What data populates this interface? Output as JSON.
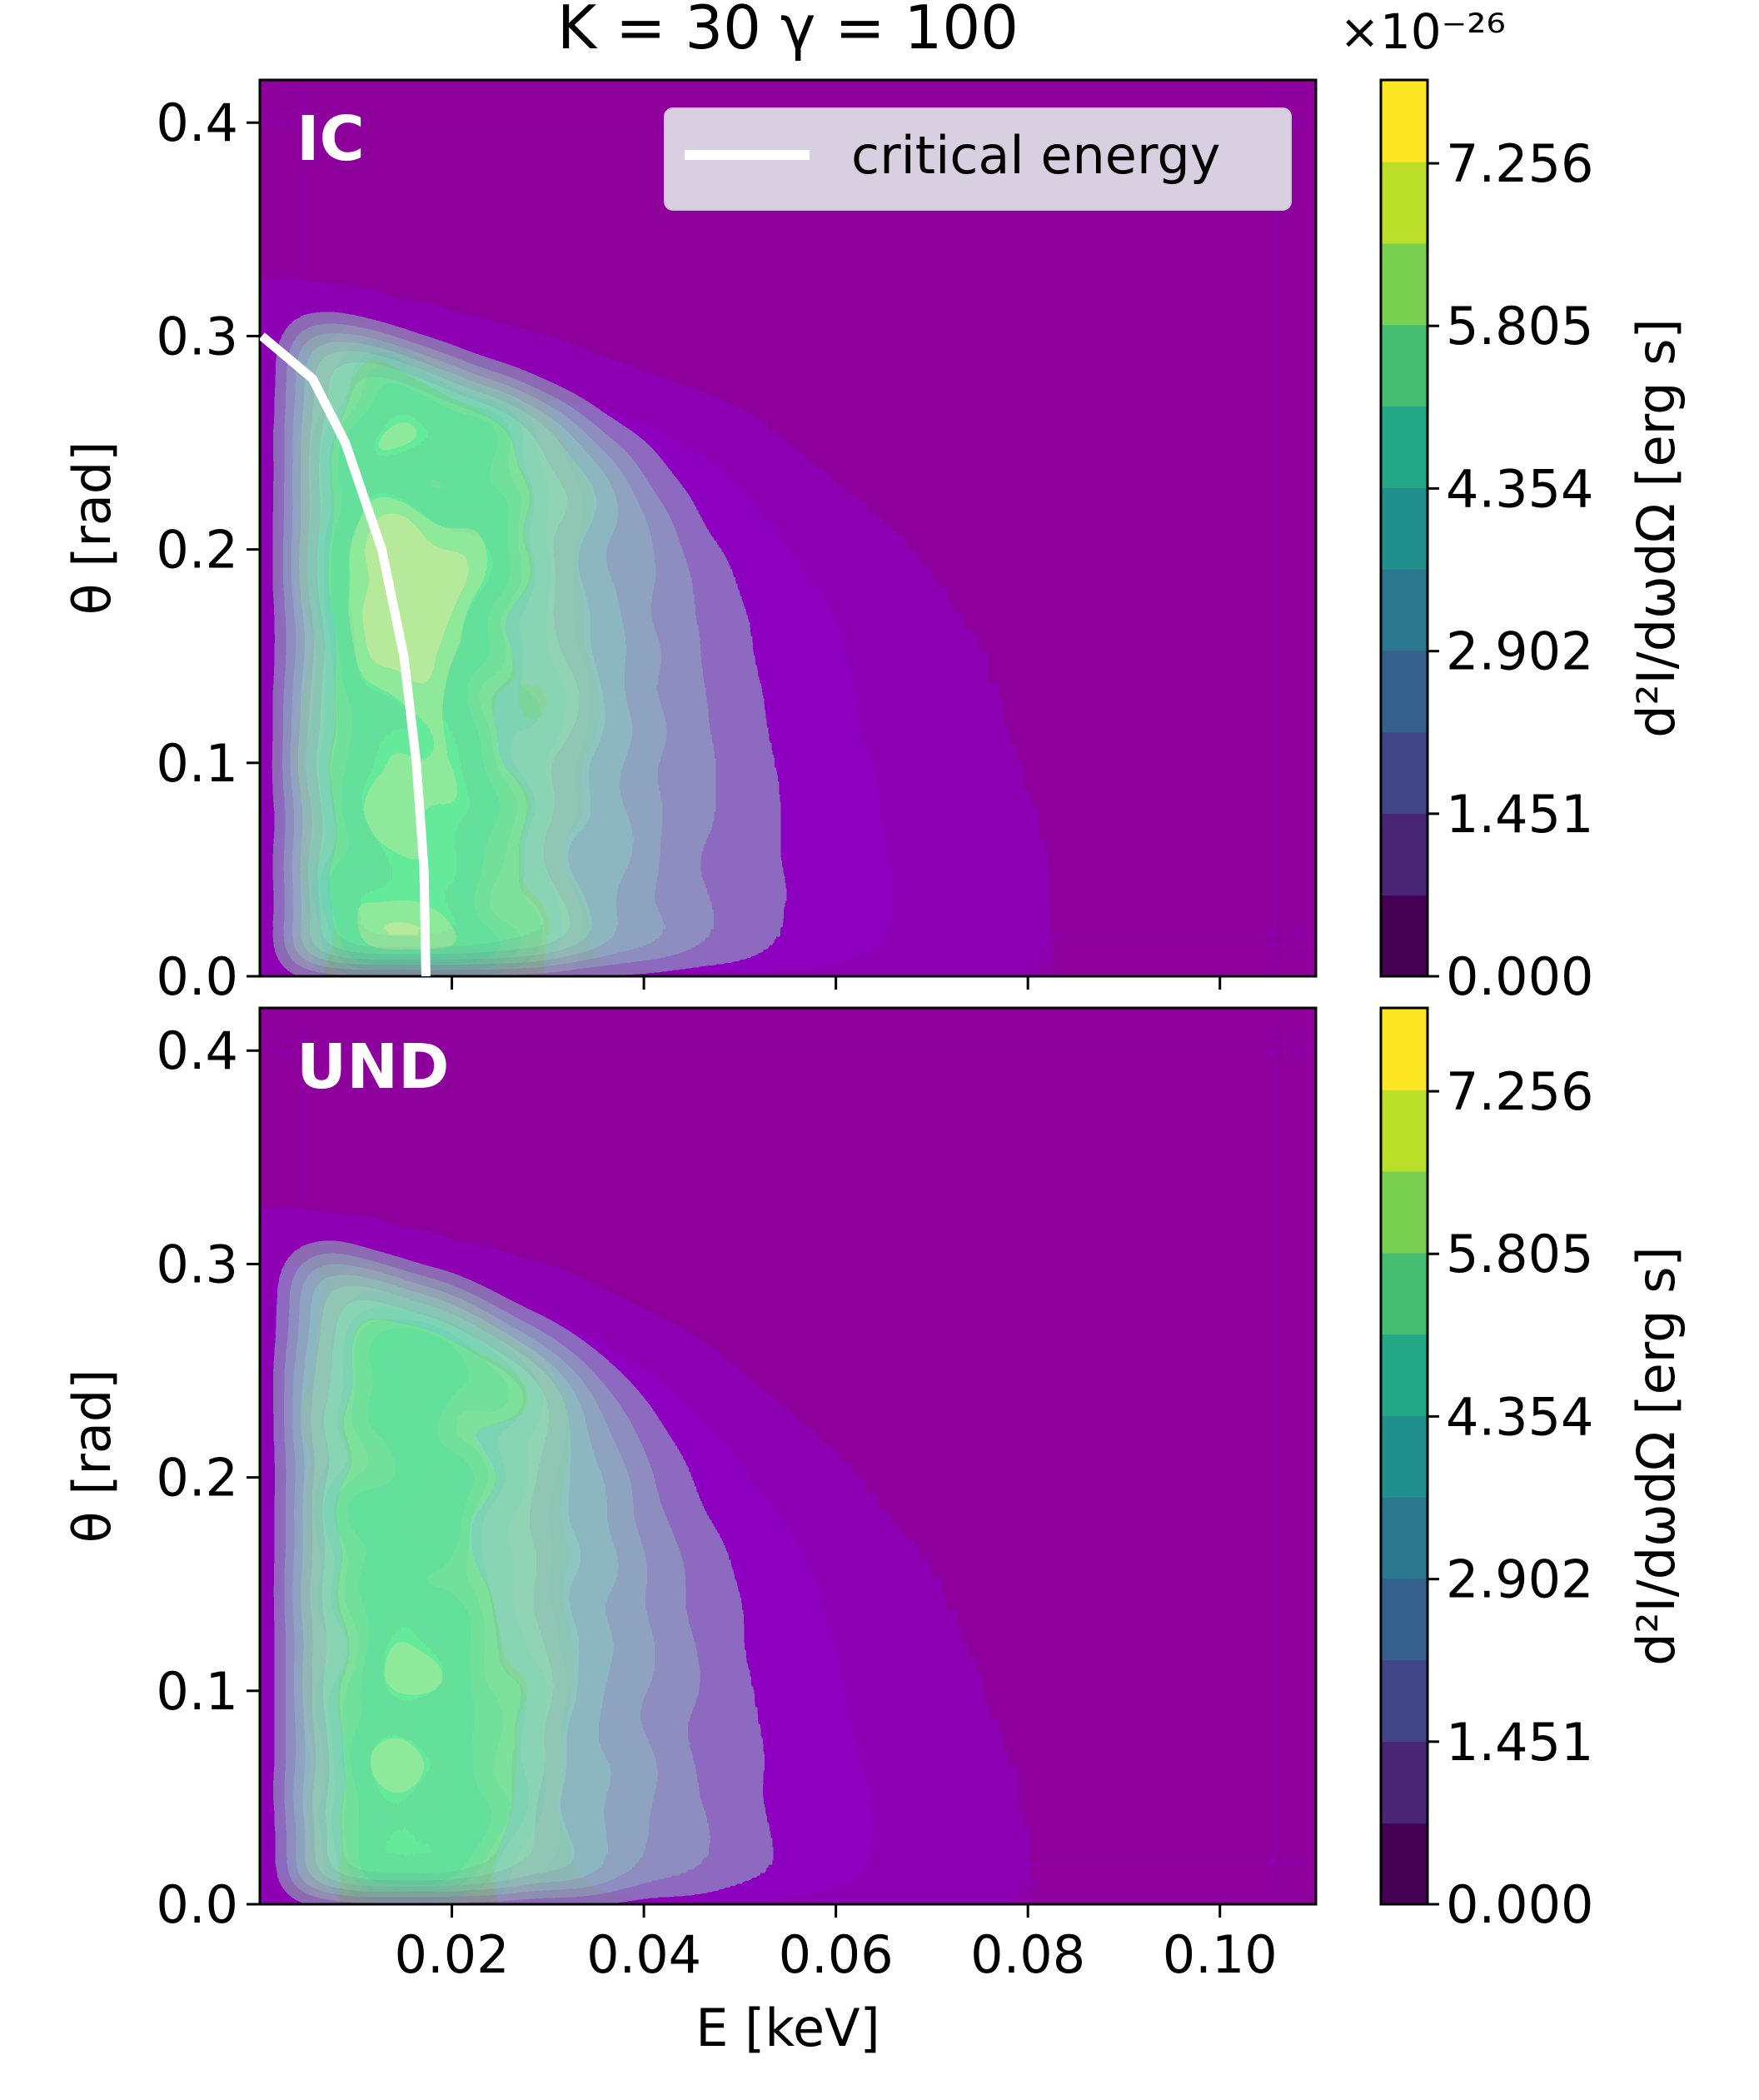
{
  "title": "K = 30  γ = 100",
  "colorbar_multiplier": "×10⁻²⁶",
  "colorbar_label": "d²I/dωdΩ [erg s]",
  "colorbar_ticks": [
    "0.000",
    "1.451",
    "2.902",
    "4.354",
    "5.805",
    "7.256"
  ],
  "colors": {
    "viridis": [
      "#440154",
      "#481a6c",
      "#472f7d",
      "#414487",
      "#39568c",
      "#31688e",
      "#2a788e",
      "#23888e",
      "#1f988b",
      "#22a884",
      "#35b779",
      "#54c568",
      "#7ad151",
      "#a5db36",
      "#d2e21b",
      "#fde725"
    ],
    "critical_line": "#ffffff"
  },
  "chart_data": [
    {
      "type": "heatmap",
      "panel_label": "IC",
      "xlabel": "E [keV]",
      "ylabel": "θ [rad]",
      "xlim": [
        0.0,
        0.11
      ],
      "ylim": [
        0.0,
        0.42
      ],
      "x_ticks": [
        "0.02",
        "0.04",
        "0.06",
        "0.08",
        "0.10"
      ],
      "y_ticks": [
        "0.0",
        "0.1",
        "0.2",
        "0.3",
        "0.4"
      ],
      "x_tick_labels_shown": false,
      "colorbar_range": [
        0.0,
        8.0
      ],
      "legend": {
        "label": "critical energy",
        "placement": "top-right"
      },
      "critical_energy_curve": {
        "theta": [
          0.0,
          0.05,
          0.1,
          0.15,
          0.2,
          0.25,
          0.28,
          0.3
        ],
        "E": [
          0.0173,
          0.0171,
          0.0163,
          0.015,
          0.0127,
          0.0089,
          0.0055,
          0.0002
        ]
      },
      "emission_edge": {
        "theta": [
          0.0,
          0.05,
          0.1,
          0.15,
          0.2,
          0.25,
          0.28,
          0.3,
          0.31
        ],
        "E_max": [
          0.0825,
          0.082,
          0.0785,
          0.075,
          0.066,
          0.05,
          0.03,
          0.012,
          0.0
        ]
      },
      "peak_value": 8.0
    },
    {
      "type": "heatmap",
      "panel_label": "UND",
      "xlabel": "E [keV]",
      "ylabel": "θ [rad]",
      "xlim": [
        0.0,
        0.11
      ],
      "ylim": [
        0.0,
        0.42
      ],
      "x_ticks": [
        "0.02",
        "0.04",
        "0.06",
        "0.08",
        "0.10"
      ],
      "y_ticks": [
        "0.0",
        "0.1",
        "0.2",
        "0.3",
        "0.4"
      ],
      "x_tick_labels_shown": true,
      "colorbar_range": [
        0.0,
        8.0
      ],
      "emission_edge": {
        "theta": [
          0.0,
          0.05,
          0.1,
          0.15,
          0.2,
          0.25,
          0.28,
          0.3,
          0.31
        ],
        "E_max": [
          0.0805,
          0.079,
          0.075,
          0.07,
          0.06,
          0.045,
          0.03,
          0.012,
          0.0
        ]
      },
      "peak_value": 7.6
    }
  ]
}
